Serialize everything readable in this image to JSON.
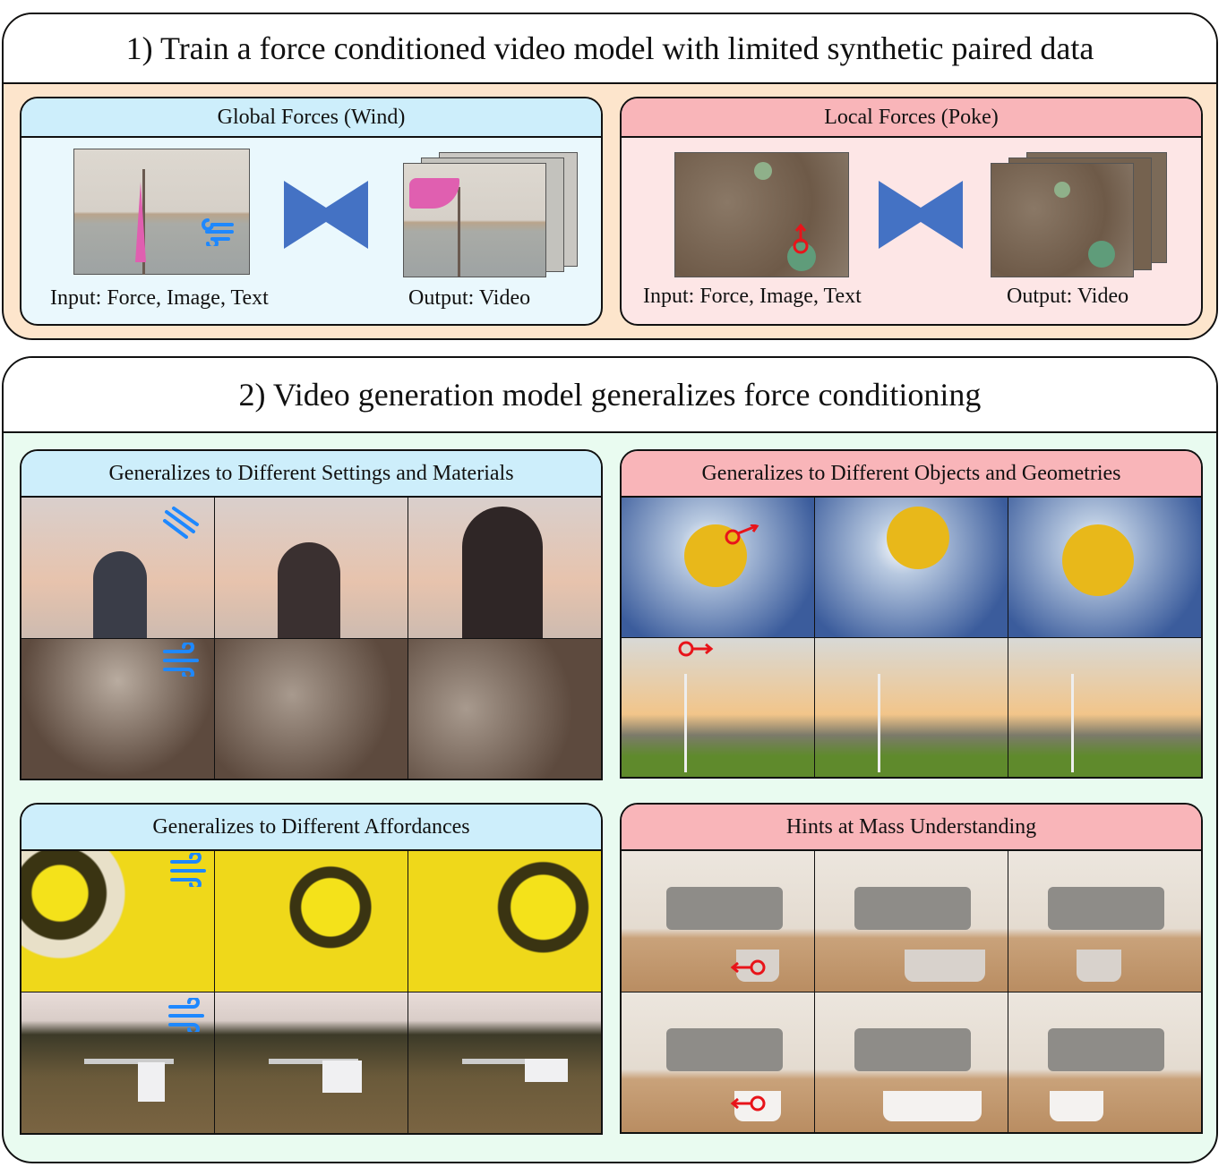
{
  "section1": {
    "title": "1) Train a force conditioned video model with limited synthetic paired data",
    "global": {
      "title": "Global Forces (Wind)",
      "input_label": "Input: Force, Image, Text",
      "output_label": "Output: Video"
    },
    "local": {
      "title": "Local Forces (Poke)",
      "input_label": "Input: Force, Image, Text",
      "output_label": "Output: Video"
    }
  },
  "section2": {
    "title": "2) Video generation model generalizes force conditioning",
    "panels": [
      {
        "title": "Generalizes to Different Settings and Materials",
        "rows": [
          "hair in wind",
          "steam from kettle"
        ]
      },
      {
        "title": "Generalizes to Different Objects and Geometries",
        "rows": [
          "sunflower poke",
          "wind turbine poke"
        ]
      },
      {
        "title": "Generalizes to Different Affordances",
        "rows": [
          "paper lanterns in wind",
          "ironing board cloth in wind"
        ]
      },
      {
        "title": "Hints at Mass Understanding",
        "rows": [
          "full laundry basket poke",
          "empty laundry basket poke"
        ]
      }
    ]
  },
  "colors": {
    "accent_blue": "#4472c4",
    "wind_icon": "#1e88ff",
    "poke_marker": "#e8141a",
    "peach": "#fde5cc",
    "mint": "#e9fbf0"
  },
  "icons": {
    "wind": "wind-icon",
    "poke": "poke-arrow-icon",
    "model": "bowtie-model-icon"
  }
}
